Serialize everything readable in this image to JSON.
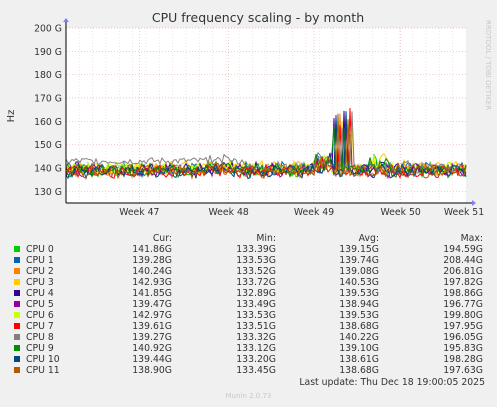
{
  "chart_data": {
    "type": "line",
    "title": "CPU frequency scaling - by month",
    "ylabel": "Hz",
    "ylim": [
      125,
      200
    ],
    "y_ticks": [
      {
        "value": 130,
        "label": "130 G"
      },
      {
        "value": 140,
        "label": "140 G"
      },
      {
        "value": 150,
        "label": "150 G"
      },
      {
        "value": 160,
        "label": "160 G"
      },
      {
        "value": 170,
        "label": "170 G"
      },
      {
        "value": 180,
        "label": "180 G"
      },
      {
        "value": 190,
        "label": "190 G"
      },
      {
        "value": 200,
        "label": "200 G"
      }
    ],
    "x_ticks": [
      "Week 47",
      "Week 48",
      "Week 49",
      "Week 50",
      "Week 51"
    ],
    "side_label": "RRDTOOL / TOBI OETIKER",
    "grid": true,
    "legend_header": [
      "Cur:",
      "Min:",
      "Avg:",
      "Max:"
    ],
    "series": [
      {
        "name": "CPU 0",
        "color": "#00cc00",
        "cur": "141.86G",
        "min": "133.39G",
        "avg": "139.15G",
        "max": "194.59G"
      },
      {
        "name": "CPU 1",
        "color": "#0066b3",
        "cur": "139.28G",
        "min": "133.53G",
        "avg": "139.74G",
        "max": "208.44G"
      },
      {
        "name": "CPU 2",
        "color": "#ff8000",
        "cur": "140.24G",
        "min": "133.52G",
        "avg": "139.08G",
        "max": "206.81G"
      },
      {
        "name": "CPU 3",
        "color": "#ffcc00",
        "cur": "142.93G",
        "min": "133.72G",
        "avg": "140.53G",
        "max": "197.82G"
      },
      {
        "name": "CPU 4",
        "color": "#330099",
        "cur": "141.85G",
        "min": "132.89G",
        "avg": "139.53G",
        "max": "198.86G"
      },
      {
        "name": "CPU 5",
        "color": "#990099",
        "cur": "139.47G",
        "min": "133.49G",
        "avg": "138.94G",
        "max": "196.77G"
      },
      {
        "name": "CPU 6",
        "color": "#ccff00",
        "cur": "142.97G",
        "min": "133.53G",
        "avg": "139.53G",
        "max": "199.80G"
      },
      {
        "name": "CPU 7",
        "color": "#ff0000",
        "cur": "139.61G",
        "min": "133.51G",
        "avg": "138.68G",
        "max": "197.95G"
      },
      {
        "name": "CPU 8",
        "color": "#808080",
        "cur": "139.27G",
        "min": "133.32G",
        "avg": "140.22G",
        "max": "196.05G"
      },
      {
        "name": "CPU 9",
        "color": "#008f00",
        "cur": "140.92G",
        "min": "133.12G",
        "avg": "139.10G",
        "max": "195.83G"
      },
      {
        "name": "CPU 10",
        "color": "#00487d",
        "cur": "139.44G",
        "min": "133.20G",
        "avg": "138.61G",
        "max": "198.28G"
      },
      {
        "name": "CPU 11",
        "color": "#b35a00",
        "cur": "138.90G",
        "min": "133.45G",
        "avg": "138.68G",
        "max": "197.63G"
      }
    ]
  },
  "footer": {
    "last_update": "Last update: Thu Dec 18 19:00:05 2025",
    "version": "Munin 2.0.73"
  }
}
